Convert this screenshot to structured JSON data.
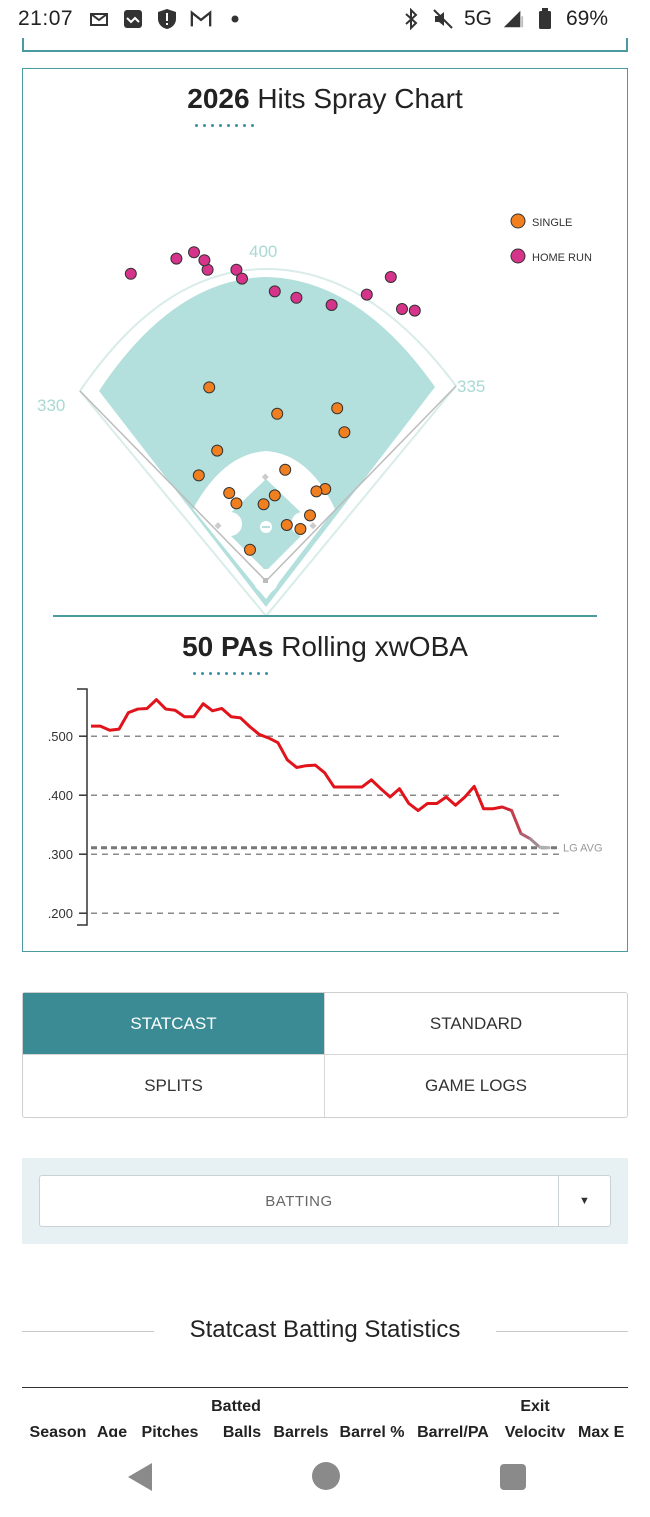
{
  "status_bar": {
    "time": "21:07",
    "network": "5G",
    "battery": "69%",
    "left_icons": [
      "mail-broken-icon",
      "inbox-icon",
      "shield-alert-icon",
      "gmail-icon",
      "dot-icon"
    ],
    "right_icons": [
      "bluetooth-icon",
      "mute-icon",
      "signal-icon",
      "battery-icon"
    ]
  },
  "spray_chart": {
    "title_bold": "2026",
    "title_rest": "Hits Spray Chart",
    "fence_labels": {
      "left": "330",
      "center": "400",
      "right": "335"
    },
    "legend": [
      {
        "label": "SINGLE",
        "color": "#f07f1f"
      },
      {
        "label": "HOME RUN",
        "color": "#d6338a"
      }
    ],
    "colors": {
      "field": "#b3e0dc",
      "single": "#f07f1f",
      "home_run": "#d6338a"
    }
  },
  "rolling_chart": {
    "title_bold": "50 PAs",
    "title_rest": "Rolling xwOBA"
  },
  "chart_data": [
    {
      "type": "scatter",
      "title": "2026 Hits Spray Chart",
      "series": [
        {
          "name": "SINGLE",
          "points": [
            [
              -61,
              163
            ],
            [
              24,
              139
            ],
            [
              98,
              186
            ],
            [
              -84,
              132
            ],
            [
              74,
              115
            ],
            [
              63,
              112
            ],
            [
              11,
              107
            ],
            [
              -3,
              96
            ],
            [
              -46,
              110
            ],
            [
              -37,
              97
            ],
            [
              55,
              82
            ],
            [
              26,
              70
            ],
            [
              43,
              65
            ],
            [
              -20,
              39
            ],
            [
              -71,
              242
            ],
            [
              14,
              209
            ],
            [
              89,
              216
            ]
          ]
        },
        {
          "name": "HOME RUN",
          "points": [
            [
              -73,
              389
            ],
            [
              -77,
              401
            ],
            [
              -112,
              403
            ],
            [
              -169,
              384
            ],
            [
              -90,
              411
            ],
            [
              -37,
              389
            ],
            [
              -30,
              378
            ],
            [
              11,
              362
            ],
            [
              38,
              354
            ],
            [
              82,
              345
            ],
            [
              126,
              358
            ],
            [
              156,
              380
            ],
            [
              170,
              340
            ],
            [
              186,
              338
            ]
          ]
        }
      ]
    },
    {
      "type": "line",
      "title": "50 PAs Rolling xwOBA",
      "y_ticks": [
        ".500",
        ".400",
        ".300",
        ".200"
      ],
      "ylim": [
        0.18,
        0.58
      ],
      "reference": {
        "label": "LG AVG",
        "value": 0.311
      },
      "values": [
        0.517,
        0.517,
        0.51,
        0.512,
        0.54,
        0.546,
        0.547,
        0.562,
        0.546,
        0.544,
        0.533,
        0.533,
        0.555,
        0.543,
        0.547,
        0.533,
        0.531,
        0.516,
        0.503,
        0.497,
        0.489,
        0.46,
        0.447,
        0.45,
        0.451,
        0.438,
        0.414,
        0.414,
        0.414,
        0.414,
        0.426,
        0.411,
        0.397,
        0.411,
        0.386,
        0.374,
        0.386,
        0.386,
        0.397,
        0.383,
        0.397,
        0.415,
        0.377,
        0.377,
        0.38,
        0.374,
        0.335,
        0.326,
        0.312,
        0.311
      ]
    }
  ],
  "tabs": [
    {
      "label": "STATCAST",
      "active": true
    },
    {
      "label": "STANDARD",
      "active": false
    },
    {
      "label": "SPLITS",
      "active": false
    },
    {
      "label": "GAME LOGS",
      "active": false
    }
  ],
  "dropdown": {
    "value": "BATTING",
    "arrow": "▼"
  },
  "stats_section": {
    "title": "Statcast Batting Statistics",
    "columns": [
      {
        "top": "",
        "bottom": "Season"
      },
      {
        "top": "",
        "bottom": "Age"
      },
      {
        "top": "",
        "bottom": "Pitches"
      },
      {
        "top": "Batted",
        "bottom": "Balls"
      },
      {
        "top": "",
        "bottom": "Barrels"
      },
      {
        "top": "",
        "bottom": "Barrel %"
      },
      {
        "top": "",
        "bottom": "Barrel/PA"
      },
      {
        "top": "Exit",
        "bottom": "Velocity"
      },
      {
        "top": "",
        "bottom": "Max E"
      }
    ]
  }
}
